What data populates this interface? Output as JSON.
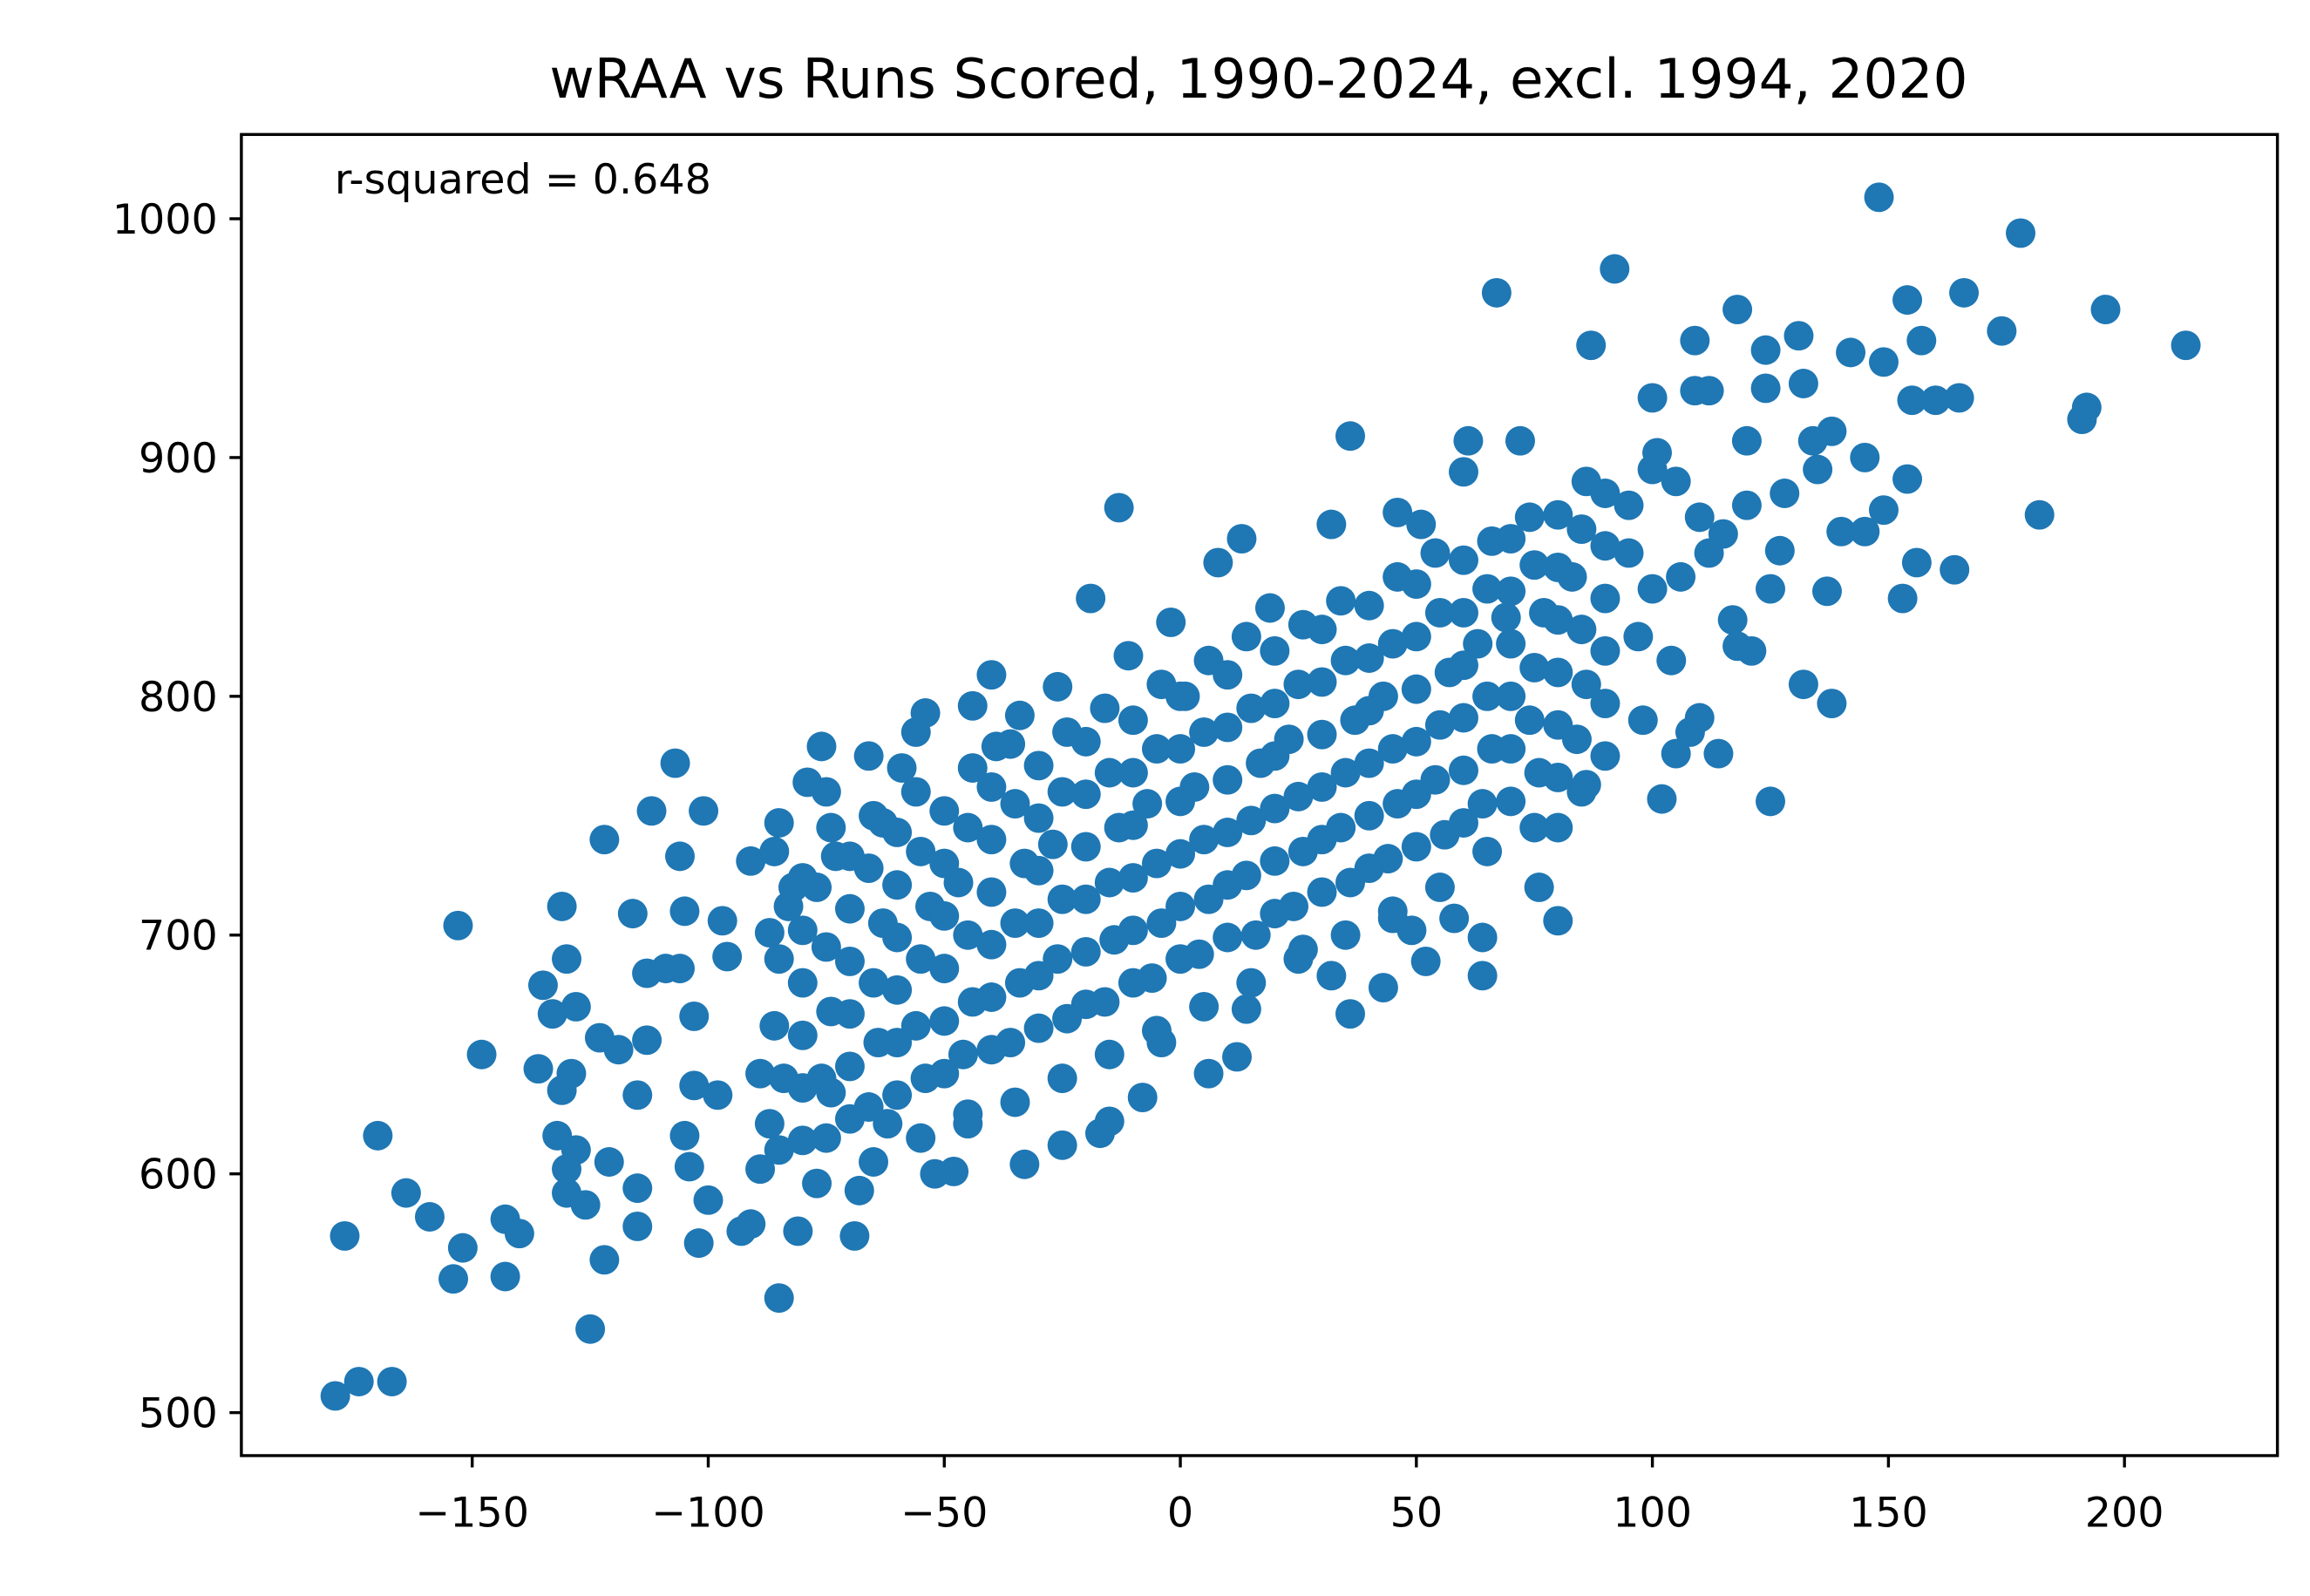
{
  "chart_data": {
    "type": "scatter",
    "title": "wRAA vs Runs Scored, 1990-2024, excl. 1994, 2020",
    "xlabel": "",
    "ylabel": "",
    "annotation": "r-squared = 0.648",
    "xlim": [
      -198.9,
      232.4
    ],
    "ylim": [
      482,
      1035.3
    ],
    "xticks": [
      -150,
      -100,
      -50,
      0,
      50,
      100,
      150,
      200
    ],
    "xtick_labels": [
      "−150",
      "−100",
      "−50",
      "0",
      "50",
      "100",
      "150",
      "200"
    ],
    "yticks": [
      500,
      600,
      700,
      800,
      900,
      1000
    ],
    "ytick_labels": [
      "500",
      "600",
      "700",
      "800",
      "900",
      "1000"
    ],
    "grid": false,
    "color": "#1f77b4",
    "points": [
      [
        -179,
        507
      ],
      [
        -174,
        513
      ],
      [
        -167,
        513
      ],
      [
        -177,
        574
      ],
      [
        -170,
        616
      ],
      [
        -164,
        592
      ],
      [
        -159,
        582
      ],
      [
        -152,
        569
      ],
      [
        -154,
        556
      ],
      [
        -153,
        704
      ],
      [
        -148,
        650
      ],
      [
        -143,
        581
      ],
      [
        -143,
        557
      ],
      [
        -140,
        575
      ],
      [
        -136,
        644
      ],
      [
        -135,
        679
      ],
      [
        -131,
        712
      ],
      [
        -130,
        690
      ],
      [
        -133,
        667
      ],
      [
        -128,
        670
      ],
      [
        -129,
        642
      ],
      [
        -131,
        635
      ],
      [
        -132,
        616
      ],
      [
        -130,
        602
      ],
      [
        -130,
        592
      ],
      [
        -128,
        610
      ],
      [
        -126,
        587
      ],
      [
        -125,
        535
      ],
      [
        -122,
        564
      ],
      [
        -121,
        605
      ],
      [
        -122,
        740
      ],
      [
        -123,
        657
      ],
      [
        -119,
        652
      ],
      [
        -116,
        709
      ],
      [
        -115,
        594
      ],
      [
        -115,
        578
      ],
      [
        -113,
        656
      ],
      [
        -115,
        633
      ],
      [
        -113,
        684
      ],
      [
        -112,
        752
      ],
      [
        -109,
        686
      ],
      [
        -107,
        772
      ],
      [
        -106,
        733
      ],
      [
        -105,
        710
      ],
      [
        -106,
        686
      ],
      [
        -103,
        666
      ],
      [
        -101,
        752
      ],
      [
        -104,
        603
      ],
      [
        -102,
        571
      ],
      [
        -100,
        589
      ],
      [
        -105,
        616
      ],
      [
        -103,
        637
      ],
      [
        -97,
        706
      ],
      [
        -96,
        691
      ],
      [
        -98,
        633
      ],
      [
        -91,
        731
      ],
      [
        -93,
        576
      ],
      [
        -91,
        579
      ],
      [
        -89,
        642
      ],
      [
        -87,
        621
      ],
      [
        -89,
        602
      ],
      [
        -87,
        701
      ],
      [
        -85,
        548
      ],
      [
        -85,
        747
      ],
      [
        -81,
        576
      ],
      [
        -82,
        720
      ],
      [
        -79,
        764
      ],
      [
        -77,
        596
      ],
      [
        -76,
        779
      ],
      [
        -74,
        634
      ],
      [
        -73,
        733
      ],
      [
        -69,
        574
      ],
      [
        -68,
        593
      ],
      [
        -66,
        775
      ],
      [
        -63,
        747
      ],
      [
        -62,
        621
      ],
      [
        -59,
        770
      ],
      [
        -56,
        785
      ],
      [
        -54,
        793
      ],
      [
        -52,
        600
      ],
      [
        -48,
        601
      ],
      [
        -44,
        796
      ],
      [
        -40,
        809
      ],
      [
        -45,
        621
      ],
      [
        -39,
        779
      ],
      [
        -33,
        604
      ],
      [
        -34,
        792
      ],
      [
        -26,
        804
      ],
      [
        -25,
        612
      ],
      [
        -17,
        617
      ],
      [
        -15,
        622
      ],
      [
        -19,
        841
      ],
      [
        -13,
        879
      ],
      [
        -8,
        632
      ],
      [
        -11,
        817
      ],
      [
        -4,
        655
      ],
      [
        -2,
        831
      ],
      [
        1,
        800
      ],
      [
        6,
        642
      ],
      [
        12,
        649
      ],
      [
        13,
        866
      ],
      [
        8,
        856
      ],
      [
        14,
        669
      ],
      [
        19,
        837
      ],
      [
        26,
        694
      ],
      [
        32,
        683
      ],
      [
        32,
        872
      ],
      [
        36,
        909
      ],
      [
        36,
        667
      ],
      [
        43,
        678
      ],
      [
        45,
        707
      ],
      [
        46,
        877
      ],
      [
        49,
        702
      ],
      [
        52,
        689
      ],
      [
        51,
        872
      ],
      [
        58,
        707
      ],
      [
        60,
        894
      ],
      [
        61,
        907
      ],
      [
        64,
        683
      ],
      [
        64,
        699
      ],
      [
        67,
        969
      ],
      [
        69,
        833
      ],
      [
        72,
        907
      ],
      [
        76,
        720
      ],
      [
        80,
        706
      ],
      [
        80,
        745
      ],
      [
        86,
        763
      ],
      [
        87,
        947
      ],
      [
        92,
        979
      ],
      [
        97,
        825
      ],
      [
        100,
        925
      ],
      [
        101,
        902
      ],
      [
        102,
        757
      ],
      [
        104,
        815
      ],
      [
        106,
        850
      ],
      [
        105,
        776
      ],
      [
        110,
        791
      ],
      [
        109,
        949
      ],
      [
        109,
        928
      ],
      [
        112,
        928
      ],
      [
        114,
        776
      ],
      [
        117,
        832
      ],
      [
        118,
        821
      ],
      [
        121,
        819
      ],
      [
        118,
        962
      ],
      [
        120,
        907
      ],
      [
        124,
        945
      ],
      [
        124,
        929
      ],
      [
        125,
        756
      ],
      [
        127,
        861
      ],
      [
        131,
        951
      ],
      [
        132,
        931
      ],
      [
        132,
        805
      ],
      [
        134,
        907
      ],
      [
        137,
        844
      ],
      [
        138,
        797
      ],
      [
        138,
        911
      ],
      [
        142,
        944
      ],
      [
        140,
        869
      ],
      [
        145,
        869
      ],
      [
        148,
        1009
      ],
      [
        149,
        878
      ],
      [
        149,
        940
      ],
      [
        154,
        966
      ],
      [
        153,
        841
      ],
      [
        154,
        891
      ],
      [
        155,
        924
      ],
      [
        156,
        856
      ],
      [
        157,
        949
      ],
      [
        160,
        924
      ],
      [
        164,
        853
      ],
      [
        165,
        925
      ],
      [
        166,
        969
      ],
      [
        174,
        953
      ],
      [
        178,
        994
      ],
      [
        182,
        876
      ],
      [
        191,
        916
      ],
      [
        192,
        921
      ],
      [
        196,
        962
      ],
      [
        213,
        947
      ],
      [
        -85,
        610
      ],
      [
        -84,
        640
      ],
      [
        -86,
        662
      ],
      [
        -85,
        690
      ],
      [
        -83,
        712
      ],
      [
        -86,
        735
      ],
      [
        -75,
        615
      ],
      [
        -76,
        640
      ],
      [
        -74,
        668
      ],
      [
        -75,
        695
      ],
      [
        -77,
        720
      ],
      [
        -74,
        745
      ],
      [
        -75,
        760
      ],
      [
        -65,
        605
      ],
      [
        -66,
        628
      ],
      [
        -64,
        655
      ],
      [
        -65,
        680
      ],
      [
        -63,
        705
      ],
      [
        -66,
        728
      ],
      [
        -65,
        750
      ],
      [
        -55,
        615
      ],
      [
        -54,
        640
      ],
      [
        -56,
        662
      ],
      [
        -55,
        690
      ],
      [
        -53,
        712
      ],
      [
        -55,
        735
      ],
      [
        -56,
        760
      ],
      [
        -45,
        625
      ],
      [
        -46,
        650
      ],
      [
        -44,
        672
      ],
      [
        -45,
        700
      ],
      [
        -47,
        722
      ],
      [
        -45,
        745
      ],
      [
        -44,
        770
      ],
      [
        -35,
        630
      ],
      [
        -36,
        655
      ],
      [
        -34,
        680
      ],
      [
        -35,
        705
      ],
      [
        -33,
        730
      ],
      [
        -35,
        755
      ],
      [
        -36,
        780
      ],
      [
        -25,
        640
      ],
      [
        -24,
        665
      ],
      [
        -26,
        690
      ],
      [
        -25,
        715
      ],
      [
        -27,
        738
      ],
      [
        -25,
        760
      ],
      [
        -24,
        785
      ],
      [
        -15,
        650
      ],
      [
        -16,
        672
      ],
      [
        -14,
        698
      ],
      [
        -15,
        722
      ],
      [
        -13,
        745
      ],
      [
        -15,
        768
      ],
      [
        -16,
        795
      ],
      [
        -5,
        660
      ],
      [
        -6,
        682
      ],
      [
        -4,
        705
      ],
      [
        -5,
        730
      ],
      [
        -7,
        755
      ],
      [
        -5,
        778
      ],
      [
        -4,
        805
      ],
      [
        5,
        670
      ],
      [
        4,
        692
      ],
      [
        6,
        715
      ],
      [
        5,
        740
      ],
      [
        3,
        762
      ],
      [
        5,
        785
      ],
      [
        6,
        815
      ],
      [
        15,
        680
      ],
      [
        16,
        700
      ],
      [
        14,
        725
      ],
      [
        15,
        748
      ],
      [
        17,
        772
      ],
      [
        15,
        795
      ],
      [
        14,
        825
      ],
      [
        25,
        690
      ],
      [
        24,
        712
      ],
      [
        26,
        735
      ],
      [
        25,
        758
      ],
      [
        23,
        782
      ],
      [
        25,
        805
      ],
      [
        26,
        830
      ],
      [
        35,
        700
      ],
      [
        36,
        722
      ],
      [
        34,
        745
      ],
      [
        35,
        768
      ],
      [
        37,
        790
      ],
      [
        35,
        815
      ],
      [
        34,
        840
      ],
      [
        45,
        710
      ],
      [
        44,
        732
      ],
      [
        46,
        755
      ],
      [
        45,
        778
      ],
      [
        43,
        800
      ],
      [
        45,
        822
      ],
      [
        46,
        850
      ],
      [
        55,
        720
      ],
      [
        56,
        742
      ],
      [
        54,
        765
      ],
      [
        55,
        788
      ],
      [
        57,
        810
      ],
      [
        55,
        835
      ],
      [
        54,
        860
      ],
      [
        65,
        735
      ],
      [
        64,
        755
      ],
      [
        66,
        778
      ],
      [
        65,
        800
      ],
      [
        63,
        822
      ],
      [
        65,
        845
      ],
      [
        66,
        865
      ],
      [
        75,
        745
      ],
      [
        76,
        768
      ],
      [
        74,
        790
      ],
      [
        75,
        812
      ],
      [
        77,
        835
      ],
      [
        75,
        855
      ],
      [
        74,
        875
      ],
      [
        85,
        760
      ],
      [
        84,
        782
      ],
      [
        86,
        805
      ],
      [
        85,
        828
      ],
      [
        83,
        850
      ],
      [
        85,
        870
      ],
      [
        86,
        890
      ],
      [
        -80,
        614
      ],
      [
        -80,
        636
      ],
      [
        -80,
        658
      ],
      [
        -80,
        680
      ],
      [
        -80,
        702
      ],
      [
        -80,
        724
      ],
      [
        -70,
        623
      ],
      [
        -70,
        645
      ],
      [
        -70,
        667
      ],
      [
        -70,
        689
      ],
      [
        -70,
        711
      ],
      [
        -70,
        733
      ],
      [
        -60,
        633
      ],
      [
        -60,
        655
      ],
      [
        -60,
        677
      ],
      [
        -60,
        699
      ],
      [
        -60,
        721
      ],
      [
        -60,
        743
      ],
      [
        -50,
        642
      ],
      [
        -50,
        664
      ],
      [
        -50,
        686
      ],
      [
        -50,
        708
      ],
      [
        -50,
        730
      ],
      [
        -50,
        752
      ],
      [
        -40,
        652
      ],
      [
        -40,
        674
      ],
      [
        -40,
        696
      ],
      [
        -40,
        718
      ],
      [
        -40,
        740
      ],
      [
        -40,
        762
      ],
      [
        -30,
        661
      ],
      [
        -30,
        683
      ],
      [
        -30,
        705
      ],
      [
        -30,
        727
      ],
      [
        -30,
        749
      ],
      [
        -30,
        771
      ],
      [
        -20,
        671
      ],
      [
        -20,
        693
      ],
      [
        -20,
        715
      ],
      [
        -20,
        737
      ],
      [
        -20,
        759
      ],
      [
        -20,
        781
      ],
      [
        -10,
        680
      ],
      [
        -10,
        702
      ],
      [
        -10,
        724
      ],
      [
        -10,
        746
      ],
      [
        -10,
        768
      ],
      [
        -10,
        790
      ],
      [
        0,
        690
      ],
      [
        0,
        712
      ],
      [
        0,
        734
      ],
      [
        0,
        756
      ],
      [
        0,
        778
      ],
      [
        0,
        800
      ],
      [
        10,
        699
      ],
      [
        10,
        721
      ],
      [
        10,
        743
      ],
      [
        10,
        765
      ],
      [
        10,
        787
      ],
      [
        10,
        809
      ],
      [
        20,
        709
      ],
      [
        20,
        731
      ],
      [
        20,
        753
      ],
      [
        20,
        775
      ],
      [
        20,
        797
      ],
      [
        20,
        819
      ],
      [
        30,
        718
      ],
      [
        30,
        740
      ],
      [
        30,
        762
      ],
      [
        30,
        784
      ],
      [
        30,
        806
      ],
      [
        30,
        828
      ],
      [
        40,
        728
      ],
      [
        40,
        750
      ],
      [
        40,
        772
      ],
      [
        40,
        794
      ],
      [
        40,
        816
      ],
      [
        40,
        838
      ],
      [
        50,
        737
      ],
      [
        50,
        759
      ],
      [
        50,
        781
      ],
      [
        50,
        803
      ],
      [
        50,
        825
      ],
      [
        50,
        847
      ],
      [
        60,
        747
      ],
      [
        60,
        769
      ],
      [
        60,
        791
      ],
      [
        60,
        813
      ],
      [
        60,
        835
      ],
      [
        60,
        857
      ],
      [
        70,
        756
      ],
      [
        70,
        778
      ],
      [
        70,
        800
      ],
      [
        70,
        822
      ],
      [
        70,
        844
      ],
      [
        70,
        866
      ],
      [
        80,
        766
      ],
      [
        80,
        788
      ],
      [
        80,
        810
      ],
      [
        80,
        832
      ],
      [
        80,
        854
      ],
      [
        80,
        876
      ],
      [
        90,
        775
      ],
      [
        90,
        797
      ],
      [
        90,
        819
      ],
      [
        90,
        841
      ],
      [
        90,
        863
      ],
      [
        90,
        885
      ],
      [
        95,
        880
      ],
      [
        100,
        895
      ],
      [
        105,
        890
      ],
      [
        110,
        875
      ],
      [
        115,
        868
      ],
      [
        120,
        880
      ],
      [
        128,
        885
      ],
      [
        135,
        895
      ],
      [
        145,
        900
      ],
      [
        98,
        790
      ],
      [
        108,
        785
      ],
      [
        112,
        860
      ],
      [
        125,
        845
      ],
      [
        95,
        860
      ],
      [
        100,
        845
      ]
    ]
  }
}
